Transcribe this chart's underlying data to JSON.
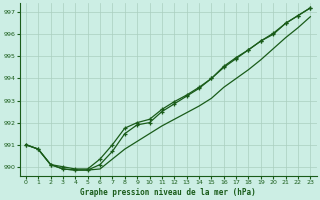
{
  "title": "Graphe pression niveau de la mer (hPa)",
  "background_color": "#cceee4",
  "grid_color": "#aacfbf",
  "line_color": "#1a5c1a",
  "x_min": 0,
  "x_max": 23,
  "y_min": 989.6,
  "y_max": 997.4,
  "y_ticks": [
    990,
    991,
    992,
    993,
    994,
    995,
    996,
    997
  ],
  "x_ticks": [
    0,
    1,
    2,
    3,
    4,
    5,
    6,
    7,
    8,
    9,
    10,
    11,
    12,
    13,
    14,
    15,
    16,
    17,
    18,
    19,
    20,
    21,
    22,
    23
  ],
  "line1": [
    991.0,
    990.8,
    990.1,
    989.9,
    989.85,
    989.85,
    989.9,
    990.35,
    990.8,
    991.15,
    991.5,
    991.85,
    992.15,
    992.45,
    992.75,
    993.1,
    993.6,
    994.0,
    994.4,
    994.85,
    995.35,
    995.85,
    996.3,
    996.8
  ],
  "line2": [
    991.0,
    990.8,
    990.1,
    989.9,
    989.85,
    989.85,
    990.1,
    990.7,
    991.5,
    991.9,
    992.0,
    992.5,
    992.85,
    993.2,
    993.55,
    994.0,
    994.55,
    994.95,
    995.3,
    995.7,
    996.05,
    996.5,
    996.85,
    997.2
  ],
  "line3": [
    991.0,
    990.8,
    990.1,
    990.0,
    989.9,
    989.9,
    990.35,
    991.0,
    991.75,
    992.0,
    992.15,
    992.6,
    992.95,
    993.25,
    993.6,
    994.0,
    994.5,
    994.9,
    995.3,
    995.7,
    996.0,
    996.5,
    996.85,
    997.2
  ]
}
